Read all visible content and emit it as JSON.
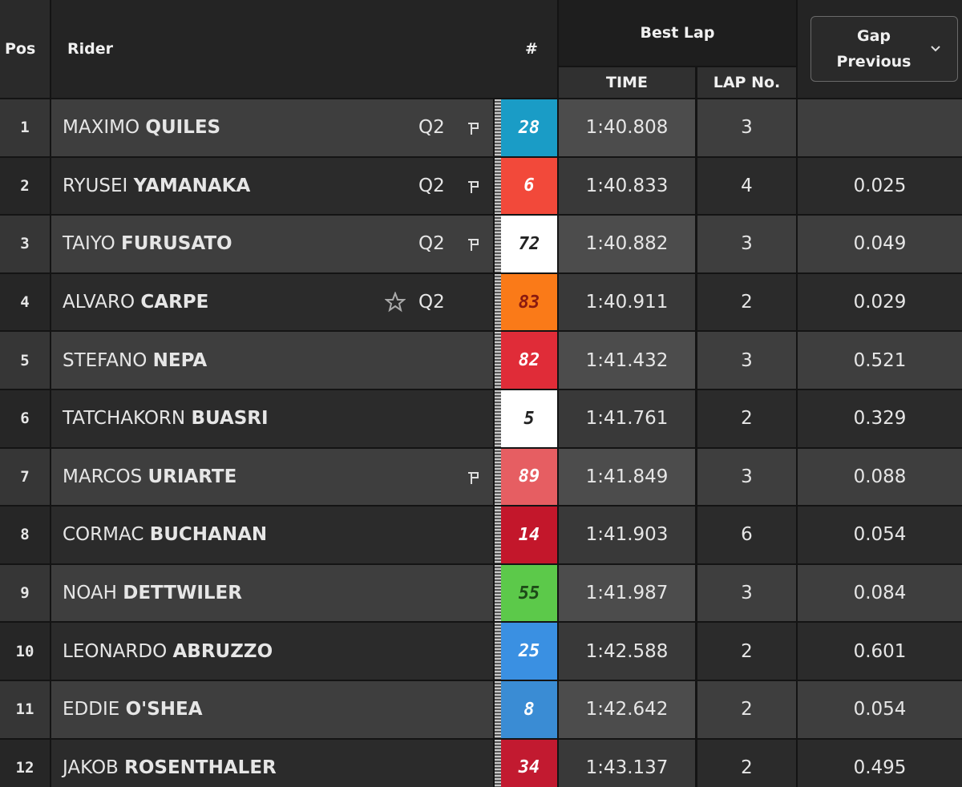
{
  "header": {
    "pos": "Pos",
    "rider": "Rider",
    "number": "#",
    "best_lap": "Best Lap",
    "time": "TIME",
    "lap_no": "LAP No.",
    "gap": "Gap Previous"
  },
  "rows": [
    {
      "pos": 1,
      "first_name": "MAXIMO",
      "last_name": "QUILES",
      "tag": "Q2",
      "pit": true,
      "star": false,
      "number": 28,
      "color": "#1a9cc6",
      "number_color": "#ffffff",
      "time": "1:40.808",
      "lap": 3
    },
    {
      "pos": 2,
      "first_name": "RYUSEI",
      "last_name": "YAMANAKA",
      "tag": "Q2",
      "pit": true,
      "star": false,
      "number": 6,
      "color": "#f2493a",
      "number_color": "#ffffff",
      "time": "1:40.833",
      "lap": 4,
      "gap": "0.025"
    },
    {
      "pos": 3,
      "first_name": "TAIYO",
      "last_name": "FURUSATO",
      "tag": "Q2",
      "pit": true,
      "star": false,
      "number": 72,
      "color": "#ffffff",
      "number_color": "#222222",
      "time": "1:40.882",
      "lap": 3,
      "gap": "0.049"
    },
    {
      "pos": 4,
      "first_name": "ALVARO",
      "last_name": "CARPE",
      "tag": "Q2",
      "pit": false,
      "star": true,
      "number": 83,
      "color": "#fa7a18",
      "number_color": "#8a1a10",
      "time": "1:40.911",
      "lap": 2,
      "gap": "0.029"
    },
    {
      "pos": 5,
      "first_name": "STEFANO",
      "last_name": "NEPA",
      "pit": false,
      "star": false,
      "number": 82,
      "color": "#e02c38",
      "number_color": "#ffffff",
      "time": "1:41.432",
      "lap": 3,
      "gap": "0.521"
    },
    {
      "pos": 6,
      "first_name": "TATCHAKORN",
      "last_name": "BUASRI",
      "pit": false,
      "star": false,
      "number": 5,
      "color": "#ffffff",
      "number_color": "#222222",
      "time": "1:41.761",
      "lap": 2,
      "gap": "0.329"
    },
    {
      "pos": 7,
      "first_name": "MARCOS",
      "last_name": "URIARTE",
      "pit": true,
      "star": false,
      "number": 89,
      "color": "#e65e62",
      "number_color": "#ffffff",
      "time": "1:41.849",
      "lap": 3,
      "gap": "0.088"
    },
    {
      "pos": 8,
      "first_name": "CORMAC",
      "last_name": "BUCHANAN",
      "pit": false,
      "star": false,
      "number": 14,
      "color": "#c3172b",
      "number_color": "#ffffff",
      "time": "1:41.903",
      "lap": 6,
      "gap": "0.054"
    },
    {
      "pos": 9,
      "first_name": "NOAH",
      "last_name": "DETTWILER",
      "pit": false,
      "star": false,
      "number": 55,
      "color": "#5cc94a",
      "number_color": "#1e4a18",
      "time": "1:41.987",
      "lap": 3,
      "gap": "0.084"
    },
    {
      "pos": 10,
      "first_name": "LEONARDO",
      "last_name": "ABRUZZO",
      "pit": false,
      "star": false,
      "number": 25,
      "color": "#3a90e2",
      "number_color": "#ffffff",
      "time": "1:42.588",
      "lap": 2,
      "gap": "0.601"
    },
    {
      "pos": 11,
      "first_name": "EDDIE",
      "last_name": "O'SHEA",
      "pit": false,
      "star": false,
      "number": 8,
      "color": "#3a8cd4",
      "number_color": "#ffffff",
      "time": "1:42.642",
      "lap": 2,
      "gap": "0.054"
    },
    {
      "pos": 12,
      "first_name": "JAKOB",
      "last_name": "ROSENTHALER",
      "pit": false,
      "star": false,
      "number": 34,
      "color": "#c21a30",
      "number_color": "#ffffff",
      "time": "1:43.137",
      "lap": 2,
      "gap": "0.495"
    }
  ]
}
